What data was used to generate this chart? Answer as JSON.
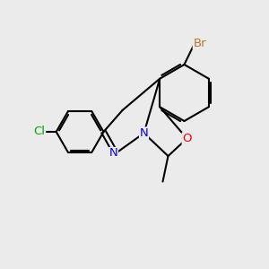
{
  "background_color": "#ebebeb",
  "bond_color": "#000000",
  "atom_colors": {
    "Br": "#b87333",
    "Cl": "#00aa00",
    "N": "#0000ff",
    "O": "#ff0000",
    "C": "#000000"
  },
  "figsize": [
    3.0,
    3.0
  ],
  "dpi": 100
}
